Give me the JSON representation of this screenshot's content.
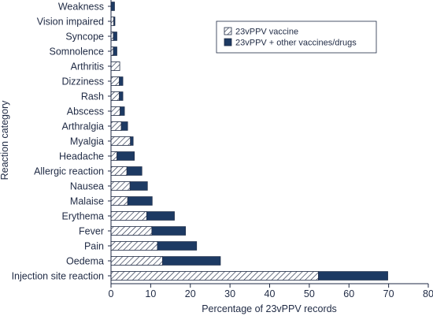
{
  "chart_data": {
    "type": "bar",
    "orientation": "horizontal",
    "stacked": true,
    "categories": [
      "Injection site reaction",
      "Oedema",
      "Pain",
      "Fever",
      "Erythema",
      "Malaise",
      "Nausea",
      "Allergic reaction",
      "Headache",
      "Myalgia",
      "Arthralgia",
      "Abscess",
      "Rash",
      "Dizziness",
      "Arthritis",
      "Somnolence",
      "Syncope",
      "Vision impaired",
      "Weakness"
    ],
    "series": [
      {
        "name": "23vPPV vaccine",
        "values": [
          52.3,
          13.0,
          11.7,
          10.3,
          9.0,
          4.2,
          4.8,
          4.0,
          1.5,
          4.9,
          2.6,
          2.3,
          2.1,
          2.1,
          2.2,
          0.6,
          0.6,
          0.7,
          0.0
        ]
      },
      {
        "name": "23vPPV + other vaccines/drugs",
        "values": [
          17.5,
          14.6,
          9.9,
          8.5,
          7.0,
          6.2,
          4.4,
          3.8,
          4.4,
          0.7,
          1.6,
          1.1,
          0.9,
          0.9,
          0.0,
          0.9,
          0.9,
          0.3,
          0.9
        ]
      }
    ],
    "xlabel": "Percentage of 23vPPV records",
    "ylabel": "Reaction category",
    "xlim": [
      0,
      80
    ],
    "xticks": [
      0,
      10,
      20,
      30,
      40,
      50,
      60,
      70,
      80
    ],
    "grid": false,
    "legend_position": "top-right",
    "colors": {
      "series1_fill": "hatched",
      "series2_fill": "#1d3a63",
      "axis": "#1f2a44",
      "bar_stroke": "#1f2a44"
    }
  }
}
